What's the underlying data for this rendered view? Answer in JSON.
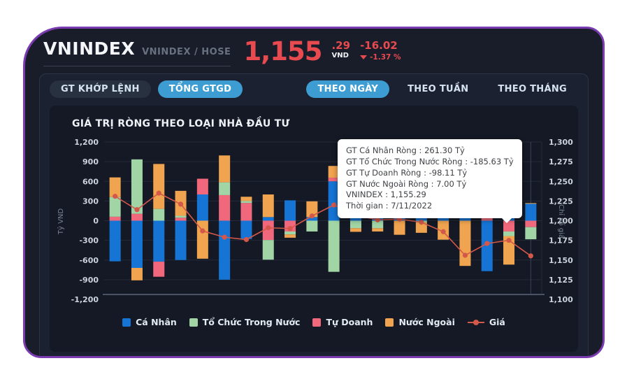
{
  "header": {
    "symbol": "VNINDEX",
    "subtitle": "VNINDEX / HOSE",
    "price_int": "1,155",
    "price_dec": ".29",
    "currency": "VND",
    "change": "-16.02",
    "change_pct": "-1.37 %",
    "trend": "down",
    "accent_color": "#e84a50"
  },
  "tabs": {
    "left": [
      {
        "label": "GT KHỚP LỆNH",
        "active": false,
        "boxed": true
      },
      {
        "label": "TỔNG GTGD",
        "active": true,
        "boxed": true
      }
    ],
    "right": [
      {
        "label": "THEO NGÀY",
        "active": true,
        "boxed": false
      },
      {
        "label": "THEO TUẦN",
        "active": false,
        "boxed": false
      },
      {
        "label": "THEO THÁNG",
        "active": false,
        "boxed": false
      }
    ],
    "active_color": "#3d9cd2"
  },
  "chart_title": "GIÁ TRỊ RÒNG THEO LOẠI NHÀ ĐẦU TƯ",
  "tooltip": {
    "lines": [
      "GT Cá Nhân Ròng  : 261.30 Tỷ",
      "GT Tổ Chức Trong Nước Ròng : -185.63 Tỷ",
      "GT Tự Doanh Ròng : -98.11 Tỷ",
      "GT Nước Ngoài Ròng : 7.00 Tỷ",
      "VNINDEX : 1,155.29",
      "Thời gian : 7/11/2022"
    ]
  },
  "legend": {
    "items": [
      {
        "label": "Cá Nhân",
        "color": "#1574d4",
        "marker": "square"
      },
      {
        "label": "Tổ Chức Trong Nước",
        "color": "#a1d5a5",
        "marker": "square"
      },
      {
        "label": "Tự Doanh",
        "color": "#f1687c",
        "marker": "square"
      },
      {
        "label": "Nước Ngoài",
        "color": "#f0a44f",
        "marker": "square"
      },
      {
        "label": "Giá",
        "color": "#d4584a",
        "marker": "line"
      }
    ]
  },
  "chart_data": {
    "type": "bar",
    "subtype": "stacked-bars-with-price-line",
    "num_bars": 20,
    "highlighted_bar_index": 19,
    "highlighted_date": "7/11/2022",
    "ylabel_left": "Tỷ VND",
    "ylabel_right": "Chỉ số giá",
    "ylim_left": [
      -1200,
      1200
    ],
    "ylim_right": [
      1100,
      1300
    ],
    "y_left_ticks": [
      "1,200",
      "900",
      "600",
      "300",
      "0",
      "-300",
      "-600",
      "-900",
      "-1,200"
    ],
    "y_right_ticks": [
      "1,300",
      "1,275",
      "1,250",
      "1,225",
      "1,200",
      "1,175",
      "1,150",
      "1,125",
      "1,100"
    ],
    "grid": true,
    "legend_position": "bottom",
    "series": [
      {
        "name": "Cá Nhân",
        "color": "#1574d4",
        "values": [
          -620,
          -720,
          -625,
          -600,
          400,
          -900,
          -280,
          55,
          310,
          55,
          600,
          115,
          200,
          140,
          170,
          180,
          220,
          -770,
          250,
          261.3
        ]
      },
      {
        "name": "Tự Doanh",
        "color": "#f1687c",
        "values": [
          60,
          105,
          -230,
          45,
          240,
          390,
          270,
          -295,
          -165,
          0,
          55,
          195,
          0,
          0,
          0,
          0,
          0,
          80,
          -165,
          -98.11
        ]
      },
      {
        "name": "Tổ Chức Trong Nước",
        "color": "#a1d5a5",
        "values": [
          300,
          830,
          180,
          30,
          0,
          195,
          30,
          -300,
          -45,
          -165,
          -780,
          -115,
          -115,
          20,
          -25,
          40,
          0,
          0,
          -70,
          -185.63
        ]
      },
      {
        "name": "Nước Ngoài",
        "color": "#f0a44f",
        "values": [
          300,
          -190,
          685,
          380,
          -580,
          410,
          65,
          345,
          -50,
          240,
          180,
          -55,
          -50,
          -215,
          -160,
          -290,
          -690,
          60,
          -435,
          7.0
        ]
      }
    ],
    "line": {
      "name": "Giá",
      "color": "#d4584a",
      "values": [
        1231,
        1214,
        1235,
        1221,
        1187,
        1179,
        1176,
        1191,
        1190,
        1206,
        1220,
        1207,
        1201,
        1202,
        1198,
        1186,
        1156,
        1171,
        1175,
        1155.29
      ]
    }
  }
}
